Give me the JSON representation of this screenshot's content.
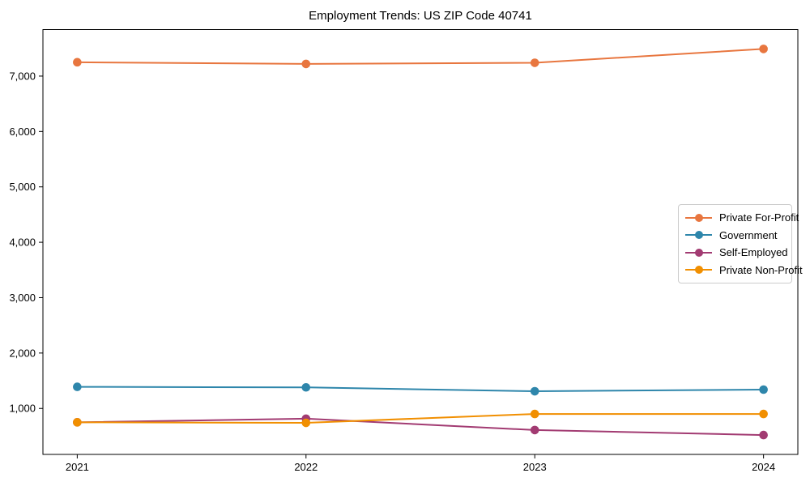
{
  "chart_data": {
    "type": "line",
    "title": "Employment Trends: US ZIP Code 40741",
    "xlabel": "",
    "ylabel": "",
    "x_categories": [
      "2021",
      "2022",
      "2023",
      "2024"
    ],
    "series": [
      {
        "name": "Private For-Profit",
        "color": "#E8763F",
        "values": [
          7250,
          7220,
          7240,
          7490
        ]
      },
      {
        "name": "Government",
        "color": "#2E86AB",
        "values": [
          1390,
          1380,
          1310,
          1340
        ]
      },
      {
        "name": "Self-Employed",
        "color": "#A23B72",
        "values": [
          750,
          815,
          610,
          520
        ]
      },
      {
        "name": "Private Non-Profit",
        "color": "#F18F01",
        "values": [
          750,
          740,
          900,
          900
        ]
      }
    ],
    "yticks": [
      1000,
      2000,
      3000,
      4000,
      5000,
      6000,
      7000
    ],
    "ytick_labels": [
      "1,000",
      "2,000",
      "3,000",
      "4,000",
      "5,000",
      "6,000",
      "7,000"
    ],
    "ylim": [
      170,
      7840
    ],
    "x_margin_fraction": 0.15,
    "grid": false,
    "legend_position": "center right",
    "marker": "circle",
    "frame_color": "#000000",
    "background_color": "#ffffff"
  }
}
